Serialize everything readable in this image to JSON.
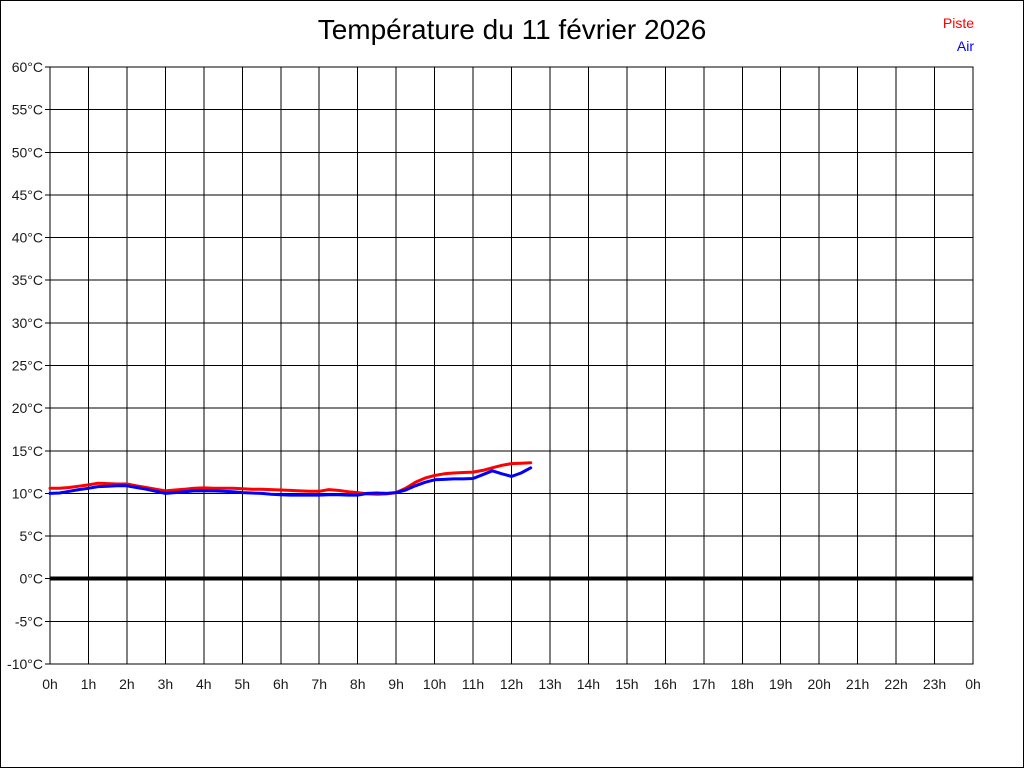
{
  "page": {
    "background": "#ffffff",
    "border_color": "#000000"
  },
  "legend": {
    "items": [
      {
        "label": "Piste",
        "color": "#ff0000"
      },
      {
        "label": "Air",
        "color": "#0000ff"
      }
    ]
  },
  "chart_data": {
    "type": "line",
    "title": "Température du 11 février 2026",
    "xlabel": "",
    "ylabel": "",
    "xlim": [
      0,
      24
    ],
    "ylim": [
      -10,
      60
    ],
    "grid": true,
    "grid_color": "#000000",
    "legend_position": "top-right",
    "zero_line": {
      "value": 0,
      "color": "#000000",
      "width": 4
    },
    "x_axis": {
      "ticks": [
        {
          "v": 0,
          "label": "0h"
        },
        {
          "v": 1,
          "label": "1h"
        },
        {
          "v": 2,
          "label": "2h"
        },
        {
          "v": 3,
          "label": "3h"
        },
        {
          "v": 4,
          "label": "4h"
        },
        {
          "v": 5,
          "label": "5h"
        },
        {
          "v": 6,
          "label": "6h"
        },
        {
          "v": 7,
          "label": "7h"
        },
        {
          "v": 8,
          "label": "8h"
        },
        {
          "v": 9,
          "label": "9h"
        },
        {
          "v": 10,
          "label": "10h"
        },
        {
          "v": 11,
          "label": "11h"
        },
        {
          "v": 12,
          "label": "12h"
        },
        {
          "v": 13,
          "label": "13h"
        },
        {
          "v": 14,
          "label": "14h"
        },
        {
          "v": 15,
          "label": "15h"
        },
        {
          "v": 16,
          "label": "16h"
        },
        {
          "v": 17,
          "label": "17h"
        },
        {
          "v": 18,
          "label": "18h"
        },
        {
          "v": 19,
          "label": "19h"
        },
        {
          "v": 20,
          "label": "20h"
        },
        {
          "v": 21,
          "label": "21h"
        },
        {
          "v": 22,
          "label": "22h"
        },
        {
          "v": 23,
          "label": "23h"
        },
        {
          "v": 24,
          "label": "0h"
        }
      ]
    },
    "y_axis": {
      "ticks": [
        {
          "v": 60,
          "label": "60°C"
        },
        {
          "v": 55,
          "label": "55°C"
        },
        {
          "v": 50,
          "label": "50°C"
        },
        {
          "v": 45,
          "label": "45°C"
        },
        {
          "v": 40,
          "label": "40°C"
        },
        {
          "v": 35,
          "label": "35°C"
        },
        {
          "v": 30,
          "label": "30°C"
        },
        {
          "v": 25,
          "label": "25°C"
        },
        {
          "v": 20,
          "label": "20°C"
        },
        {
          "v": 15,
          "label": "15°C"
        },
        {
          "v": 10,
          "label": "10°C"
        },
        {
          "v": 5,
          "label": "5°C"
        },
        {
          "v": 0,
          "label": "0°C"
        },
        {
          "v": -5,
          "label": "-5°C"
        },
        {
          "v": -10,
          "label": "-10°C"
        }
      ]
    },
    "series": [
      {
        "name": "Piste",
        "color": "#ff0000",
        "line_width": 3,
        "x": [
          0,
          0.25,
          0.5,
          0.75,
          1,
          1.25,
          1.5,
          1.75,
          2,
          2.25,
          2.5,
          2.75,
          3,
          3.25,
          3.5,
          3.75,
          4,
          4.25,
          4.5,
          4.75,
          5,
          5.25,
          5.5,
          5.75,
          6,
          6.25,
          6.5,
          6.75,
          7,
          7.25,
          7.5,
          7.75,
          8,
          8.25,
          8.5,
          8.75,
          9,
          9.25,
          9.5,
          9.75,
          10,
          10.25,
          10.5,
          10.75,
          11,
          11.25,
          11.5,
          11.75,
          12,
          12.25,
          12.5
        ],
        "values": [
          10.6,
          10.6,
          10.7,
          10.85,
          11.0,
          11.2,
          11.15,
          11.1,
          11.1,
          10.9,
          10.7,
          10.5,
          10.3,
          10.4,
          10.5,
          10.6,
          10.65,
          10.6,
          10.6,
          10.6,
          10.55,
          10.5,
          10.5,
          10.45,
          10.4,
          10.35,
          10.3,
          10.25,
          10.25,
          10.45,
          10.35,
          10.2,
          10.1,
          9.95,
          9.9,
          9.95,
          10.1,
          10.6,
          11.3,
          11.8,
          12.1,
          12.3,
          12.4,
          12.45,
          12.5,
          12.7,
          13.0,
          13.3,
          13.5,
          13.55,
          13.6
        ]
      },
      {
        "name": "Air",
        "color": "#0000ff",
        "line_width": 3,
        "x": [
          0,
          0.25,
          0.5,
          0.75,
          1,
          1.25,
          1.5,
          1.75,
          2,
          2.25,
          2.5,
          2.75,
          3,
          3.25,
          3.5,
          3.75,
          4,
          4.25,
          4.5,
          4.75,
          5,
          5.25,
          5.5,
          5.75,
          6,
          6.25,
          6.5,
          6.75,
          7,
          7.25,
          7.5,
          7.75,
          8,
          8.25,
          8.5,
          8.75,
          9,
          9.25,
          9.5,
          9.75,
          10,
          10.25,
          10.5,
          10.75,
          11,
          11.25,
          11.5,
          11.75,
          12,
          12.25,
          12.5
        ],
        "values": [
          10.0,
          10.05,
          10.25,
          10.45,
          10.6,
          10.8,
          10.85,
          10.9,
          10.9,
          10.7,
          10.5,
          10.25,
          10.0,
          10.1,
          10.2,
          10.3,
          10.3,
          10.3,
          10.25,
          10.2,
          10.1,
          10.05,
          10.0,
          9.9,
          9.85,
          9.8,
          9.8,
          9.8,
          9.8,
          9.85,
          9.85,
          9.8,
          9.8,
          10.0,
          10.05,
          10.0,
          10.1,
          10.4,
          10.9,
          11.3,
          11.6,
          11.65,
          11.7,
          11.7,
          11.75,
          12.2,
          12.65,
          12.3,
          12.0,
          12.4,
          13.0
        ]
      }
    ]
  }
}
